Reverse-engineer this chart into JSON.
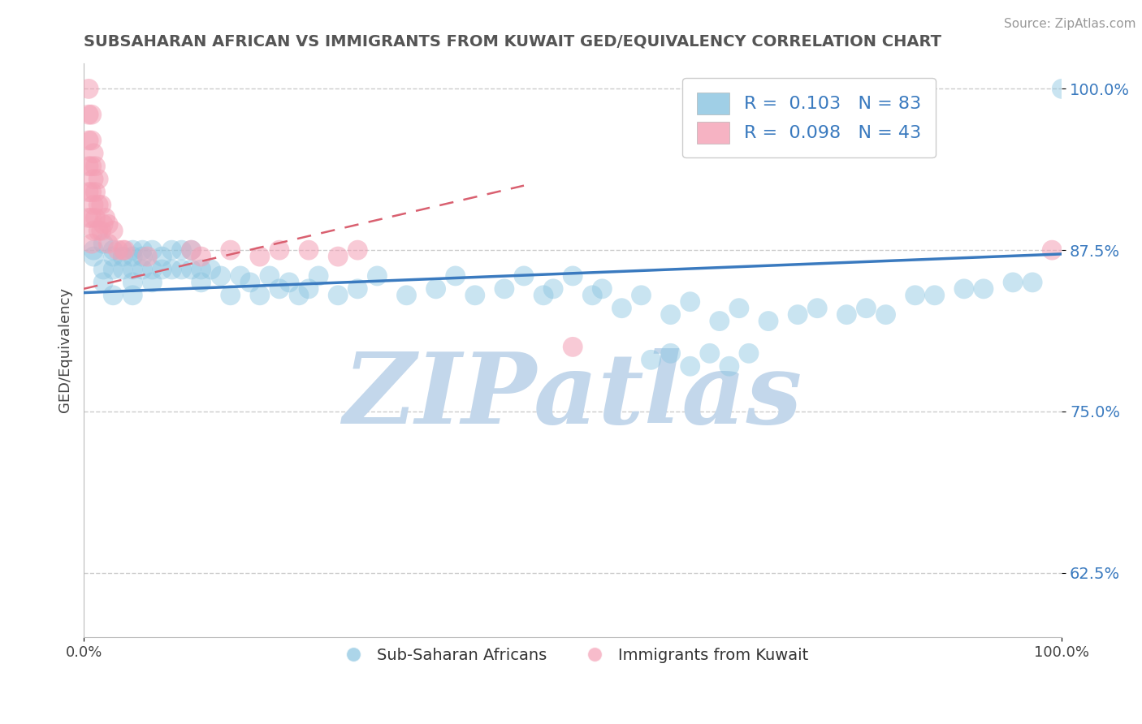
{
  "title": "SUBSAHARAN AFRICAN VS IMMIGRANTS FROM KUWAIT GED/EQUIVALENCY CORRELATION CHART",
  "source": "Source: ZipAtlas.com",
  "ylabel": "GED/Equivalency",
  "xlim": [
    0.0,
    1.0
  ],
  "ylim": [
    0.575,
    1.02
  ],
  "yticks": [
    0.625,
    0.75,
    0.875,
    1.0
  ],
  "ytick_labels": [
    "62.5%",
    "75.0%",
    "87.5%",
    "100.0%"
  ],
  "legend_r1": "R =  0.103   N = 83",
  "legend_r2": "R =  0.098   N = 43",
  "blue_color": "#89c4e0",
  "pink_color": "#f4a0b5",
  "blue_line_color": "#3a7abf",
  "pink_line_color": "#d96070",
  "watermark": "ZIPatlas",
  "watermark_color_r": 195,
  "watermark_color_g": 215,
  "watermark_color_b": 235,
  "background_color": "#ffffff",
  "grid_color": "#cccccc",
  "blue_x": [
    0.01,
    0.01,
    0.02,
    0.02,
    0.02,
    0.03,
    0.03,
    0.03,
    0.03,
    0.04,
    0.04,
    0.05,
    0.05,
    0.05,
    0.05,
    0.05,
    0.06,
    0.06,
    0.06,
    0.07,
    0.07,
    0.07,
    0.08,
    0.08,
    0.09,
    0.09,
    0.1,
    0.1,
    0.11,
    0.11,
    0.12,
    0.12,
    0.13,
    0.14,
    0.15,
    0.16,
    0.17,
    0.18,
    0.19,
    0.2,
    0.21,
    0.22,
    0.23,
    0.24,
    0.26,
    0.28,
    0.3,
    0.33,
    0.36,
    0.38,
    0.4,
    0.43,
    0.45,
    0.47,
    0.48,
    0.5,
    0.52,
    0.53,
    0.55,
    0.57,
    0.6,
    0.62,
    0.65,
    0.67,
    0.7,
    0.73,
    0.75,
    0.78,
    0.8,
    0.82,
    0.85,
    0.87,
    0.9,
    0.92,
    0.95,
    0.97,
    1.0,
    0.58,
    0.6,
    0.62,
    0.64,
    0.66,
    0.68
  ],
  "blue_y": [
    0.875,
    0.87,
    0.88,
    0.86,
    0.85,
    0.875,
    0.87,
    0.86,
    0.84,
    0.87,
    0.86,
    0.875,
    0.87,
    0.86,
    0.85,
    0.84,
    0.875,
    0.87,
    0.86,
    0.875,
    0.86,
    0.85,
    0.87,
    0.86,
    0.875,
    0.86,
    0.875,
    0.86,
    0.875,
    0.86,
    0.86,
    0.85,
    0.86,
    0.855,
    0.84,
    0.855,
    0.85,
    0.84,
    0.855,
    0.845,
    0.85,
    0.84,
    0.845,
    0.855,
    0.84,
    0.845,
    0.855,
    0.84,
    0.845,
    0.855,
    0.84,
    0.845,
    0.855,
    0.84,
    0.845,
    0.855,
    0.84,
    0.845,
    0.83,
    0.84,
    0.825,
    0.835,
    0.82,
    0.83,
    0.82,
    0.825,
    0.83,
    0.825,
    0.83,
    0.825,
    0.84,
    0.84,
    0.845,
    0.845,
    0.85,
    0.85,
    1.0,
    0.79,
    0.795,
    0.785,
    0.795,
    0.785,
    0.795
  ],
  "pink_x": [
    0.005,
    0.005,
    0.005,
    0.005,
    0.005,
    0.005,
    0.008,
    0.008,
    0.008,
    0.008,
    0.008,
    0.008,
    0.01,
    0.01,
    0.01,
    0.01,
    0.012,
    0.012,
    0.012,
    0.015,
    0.015,
    0.015,
    0.018,
    0.018,
    0.02,
    0.022,
    0.025,
    0.025,
    0.03,
    0.035,
    0.04,
    0.042,
    0.065,
    0.11,
    0.12,
    0.15,
    0.18,
    0.2,
    0.23,
    0.26,
    0.28,
    0.99,
    0.5
  ],
  "pink_y": [
    1.0,
    0.98,
    0.96,
    0.94,
    0.92,
    0.9,
    0.98,
    0.96,
    0.94,
    0.92,
    0.9,
    0.88,
    0.95,
    0.93,
    0.91,
    0.89,
    0.94,
    0.92,
    0.9,
    0.93,
    0.91,
    0.89,
    0.91,
    0.89,
    0.895,
    0.9,
    0.895,
    0.88,
    0.89,
    0.875,
    0.875,
    0.875,
    0.87,
    0.875,
    0.87,
    0.875,
    0.87,
    0.875,
    0.875,
    0.87,
    0.875,
    0.875,
    0.8
  ],
  "blue_trend_x": [
    0.0,
    1.0
  ],
  "blue_trend_y": [
    0.842,
    0.872
  ],
  "pink_trend_x": [
    0.0,
    0.45
  ],
  "pink_trend_y": [
    0.845,
    0.925
  ]
}
